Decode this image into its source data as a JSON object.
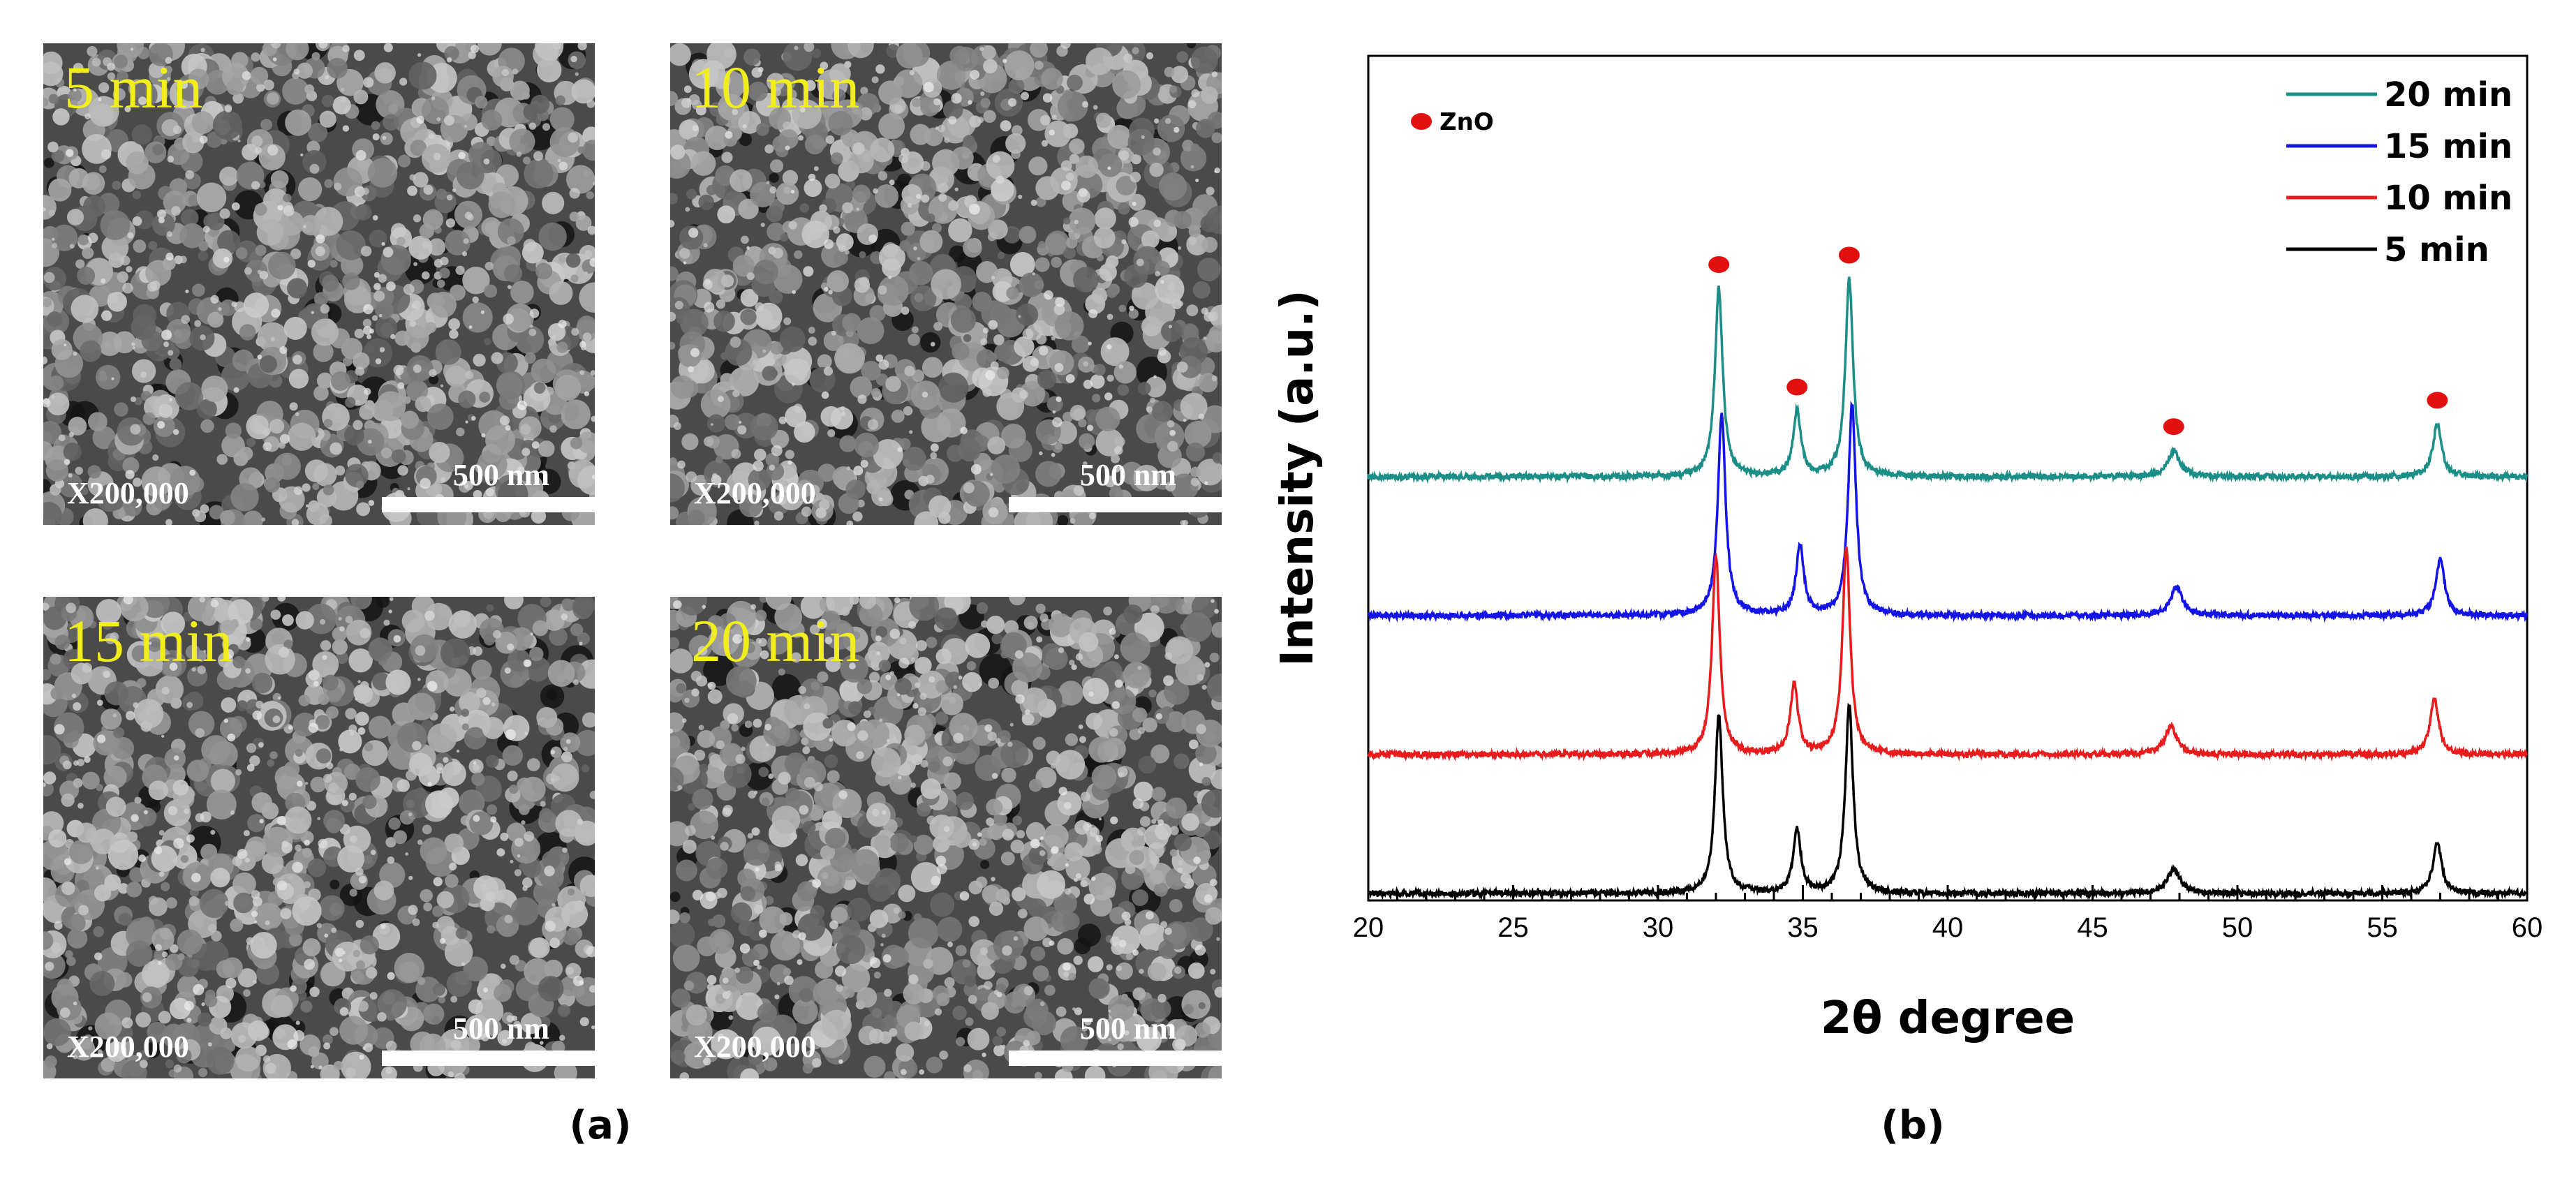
{
  "sem_panels": [
    {
      "time": "5 min",
      "magnification": "X200,000",
      "scale_label": "500 nm"
    },
    {
      "time": "10 min",
      "magnification": "X200,000",
      "scale_label": "500 nm"
    },
    {
      "time": "15 min",
      "magnification": "X200,000",
      "scale_label": "500 nm"
    },
    {
      "time": "20 min",
      "magnification": "X200,000",
      "scale_label": "500 nm"
    }
  ],
  "panel_labels": {
    "a": "(a)",
    "b": "(b)"
  },
  "colors": {
    "time_label": "#f2ee1c",
    "zno_marker": "#e31010"
  },
  "chart_data": {
    "type": "line",
    "title": "",
    "xlabel": "2θ degree",
    "ylabel": "Intensity (a.u.)",
    "xlim": [
      20,
      60
    ],
    "xticks": [
      20,
      25,
      30,
      35,
      40,
      45,
      50,
      55,
      60
    ],
    "yticks": [],
    "legend_position": "top-right",
    "marker_legend": {
      "label": "ZnO",
      "color": "#e31010"
    },
    "zno_peaks": [
      32.0,
      34.7,
      36.5,
      47.7,
      56.8
    ],
    "peak_shape": {
      "widths_deg": [
        0.16,
        0.16,
        0.16,
        0.25,
        0.18
      ],
      "relative_heights": [
        1.0,
        0.35,
        1.05,
        0.14,
        0.28
      ]
    },
    "series": [
      {
        "name": "20 min",
        "color": "#1a8e87",
        "offset": 3,
        "peak_scale": 1.0,
        "peak_shift": 0.1
      },
      {
        "name": "15 min",
        "color": "#1414e6",
        "offset": 2,
        "peak_scale": 1.07,
        "peak_shift": 0.2
      },
      {
        "name": "10 min",
        "color": "#e81c1c",
        "offset": 1,
        "peak_scale": 1.05,
        "peak_shift": 0.0
      },
      {
        "name": "5 min",
        "color": "#000000",
        "offset": 0,
        "peak_scale": 0.95,
        "peak_shift": 0.1
      }
    ]
  }
}
